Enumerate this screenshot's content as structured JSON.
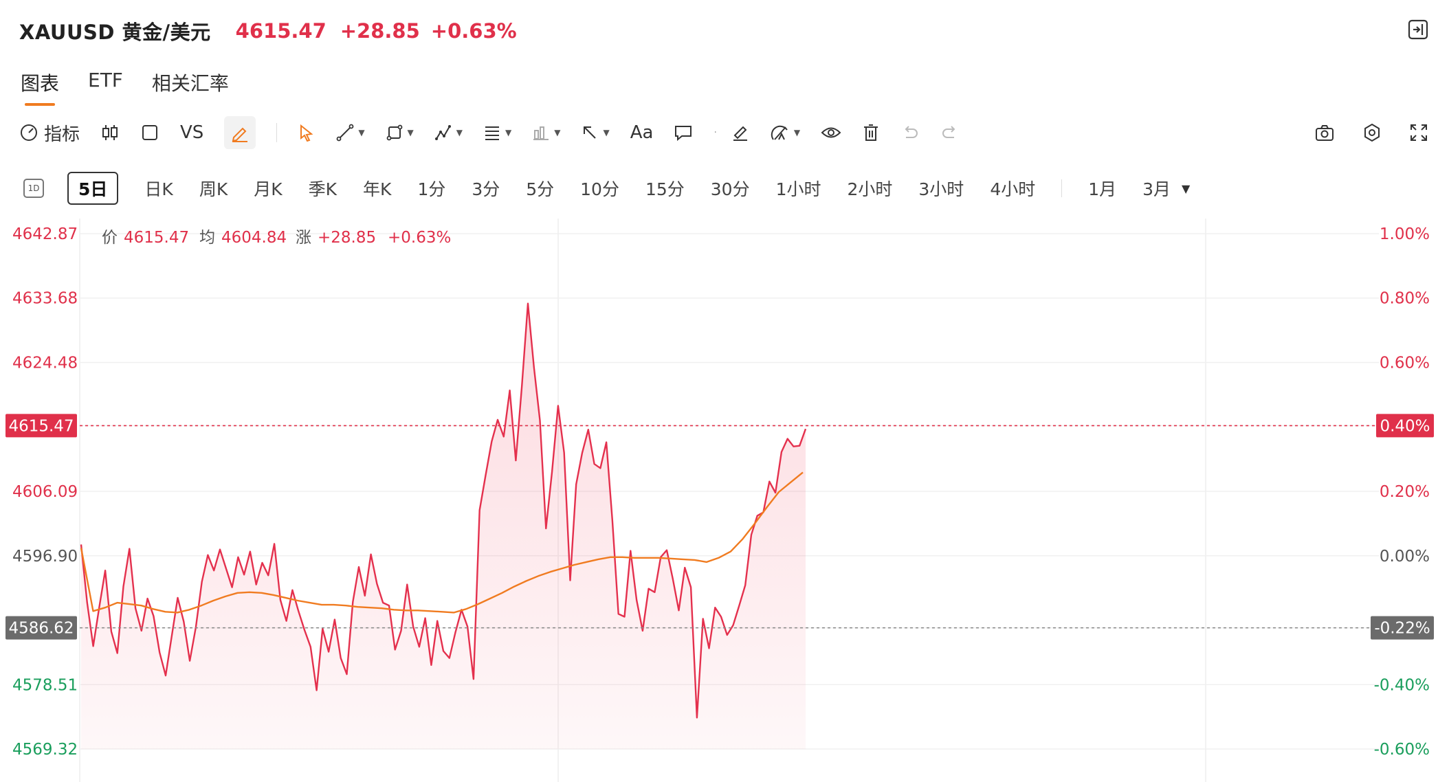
{
  "header": {
    "symbol": "XAUUSD 黄金/美元",
    "price": "4615.47",
    "change": "+28.85",
    "change_pct": "+0.63%"
  },
  "tabs": [
    {
      "label": "图表",
      "active": true
    },
    {
      "label": "ETF",
      "active": false
    },
    {
      "label": "相关汇率",
      "active": false
    }
  ],
  "toolbar": {
    "indicator_label": "指标",
    "vs_label": "VS",
    "text_label": "Aa"
  },
  "periods": {
    "icon_label": "1D",
    "items": [
      "5日",
      "日K",
      "周K",
      "月K",
      "季K",
      "年K",
      "1分",
      "3分",
      "5分",
      "10分",
      "15分",
      "30分",
      "1小时",
      "2小时",
      "3小时",
      "4小时",
      "1月",
      "3月"
    ],
    "active": "5日"
  },
  "chart_data": {
    "type": "line",
    "price_ticks": [
      "4642.87",
      "4633.68",
      "4624.48",
      "4615.47",
      "4606.09",
      "4596.90",
      "4586.62",
      "4578.51",
      "4569.32"
    ],
    "pct_ticks": [
      "1.00%",
      "0.80%",
      "0.60%",
      "0.40%",
      "0.20%",
      "0.00%",
      "-0.22%",
      "-0.40%",
      "-0.60%"
    ],
    "ylim": [
      4569.32,
      4642.87
    ],
    "prev_close": 4596.9,
    "current_price": 4615.47,
    "current_pct": "0.40%",
    "low_marker_price": 4586.62,
    "low_marker_pct": "-0.22%",
    "info": {
      "price_label": "价",
      "price_value": "4615.47",
      "avg_label": "均",
      "avg_value": "4604.84",
      "chg_label": "涨",
      "chg_value": "+28.85",
      "pct_value": "+0.63%"
    },
    "series": [
      {
        "name": "价",
        "values": [
          4598.5,
          4590.2,
          4584.0,
          4589.5,
          4594.8,
          4586.1,
          4583.0,
          4592.5,
          4597.9,
          4589.4,
          4586.2,
          4590.8,
          4588.3,
          4583.1,
          4579.8,
          4585.4,
          4590.9,
          4587.5,
          4581.9,
          4586.7,
          4593.2,
          4597.0,
          4594.8,
          4597.8,
          4595.1,
          4592.4,
          4596.7,
          4594.2,
          4597.5,
          4592.8,
          4595.9,
          4594.1,
          4598.6,
          4590.6,
          4587.6,
          4592.0,
          4589.0,
          4586.3,
          4583.9,
          4577.7,
          4586.5,
          4583.2,
          4587.8,
          4582.3,
          4580.0,
          4590.3,
          4595.3,
          4591.2,
          4597.1,
          4592.9,
          4590.2,
          4589.8,
          4583.5,
          4586.2,
          4592.8,
          4586.8,
          4583.9,
          4588.0,
          4581.3,
          4587.6,
          4583.3,
          4582.3,
          4586.0,
          4589.2,
          4586.8,
          4579.3,
          4603.4,
          4608.4,
          4613.2,
          4616.3,
          4613.9,
          4620.5,
          4610.5,
          4621.1,
          4632.9,
          4623.8,
          4616.2,
          4600.8,
          4608.9,
          4618.3,
          4611.6,
          4593.4,
          4607.1,
          4611.6,
          4614.9,
          4610.0,
          4609.4,
          4613.1,
          4601.9,
          4588.6,
          4588.2,
          4597.6,
          4590.6,
          4586.2,
          4592.2,
          4591.7,
          4596.7,
          4597.7,
          4593.6,
          4589.1,
          4595.2,
          4592.4,
          4573.8,
          4587.9,
          4583.7,
          4589.5,
          4588.2,
          4585.6,
          4587.0,
          4589.8,
          4592.7,
          4599.9,
          4602.6,
          4603.1,
          4607.5,
          4605.9,
          4611.7,
          4613.6,
          4612.5,
          4612.6,
          4615.0
        ]
      },
      {
        "name": "均",
        "values": [
          4598.0,
          4589.0,
          4589.5,
          4590.2,
          4590.0,
          4589.8,
          4589.3,
          4588.9,
          4588.8,
          4589.2,
          4589.8,
          4590.5,
          4591.1,
          4591.6,
          4591.7,
          4591.6,
          4591.3,
          4590.9,
          4590.5,
          4590.2,
          4589.9,
          4589.9,
          4589.8,
          4589.6,
          4589.5,
          4589.4,
          4589.2,
          4589.1,
          4589.1,
          4589.0,
          4588.9,
          4588.8,
          4589.3,
          4590.0,
          4590.8,
          4591.6,
          4592.5,
          4593.3,
          4594.0,
          4594.6,
          4595.1,
          4595.6,
          4596.0,
          4596.4,
          4596.7,
          4596.7,
          4596.6,
          4596.6,
          4596.6,
          4596.5,
          4596.4,
          4596.3,
          4596.0,
          4596.6,
          4597.5,
          4599.3,
          4601.5,
          4603.8,
          4606.0,
          4607.4,
          4608.8
        ]
      }
    ]
  }
}
